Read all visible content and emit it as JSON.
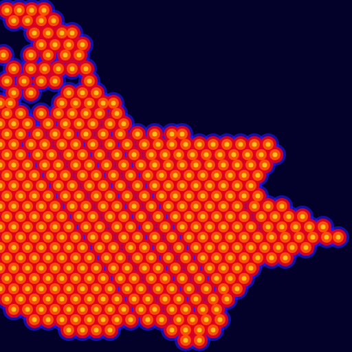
{
  "chart_data": {
    "type": "scatter",
    "tick_labels": false,
    "xlim": [
      0,
      512
    ],
    "ylim": [
      0,
      512
    ],
    "x": [
      10,
      28,
      46,
      64,
      20,
      40,
      60,
      78,
      50,
      70,
      90,
      105,
      60,
      80,
      100,
      120,
      5,
      45,
      70,
      95,
      115,
      20,
      45,
      65,
      85,
      105,
      125,
      10,
      35,
      60,
      80,
      130,
      20,
      45,
      100,
      120,
      140,
      0,
      15,
      90,
      110,
      130,
      150,
      165,
      10,
      30,
      60,
      85,
      105,
      125,
      145,
      170,
      0,
      20,
      40,
      70,
      95,
      115,
      135,
      160,
      180,
      10,
      30,
      55,
      80,
      100,
      125,
      150,
      175,
      200,
      225,
      250,
      265,
      0,
      20,
      45,
      65,
      90,
      110,
      135,
      160,
      185,
      210,
      230,
      250,
      270,
      290,
      310,
      330,
      350,
      370,
      390,
      10,
      30,
      55,
      75,
      100,
      120,
      145,
      170,
      195,
      220,
      240,
      260,
      280,
      300,
      320,
      340,
      360,
      380,
      400,
      0,
      20,
      40,
      65,
      85,
      110,
      130,
      155,
      180,
      205,
      225,
      245,
      265,
      285,
      305,
      325,
      345,
      365,
      385,
      10,
      30,
      50,
      75,
      95,
      120,
      140,
      165,
      190,
      215,
      235,
      255,
      275,
      295,
      315,
      335,
      355,
      375,
      0,
      20,
      40,
      60,
      85,
      105,
      130,
      150,
      175,
      200,
      225,
      245,
      265,
      285,
      305,
      325,
      345,
      365,
      10,
      30,
      50,
      70,
      95,
      115,
      140,
      160,
      185,
      210,
      235,
      255,
      275,
      295,
      315,
      335,
      355,
      375,
      0,
      20,
      40,
      60,
      80,
      105,
      125,
      150,
      170,
      195,
      220,
      245,
      265,
      285,
      305,
      325,
      345,
      370,
      390,
      410,
      10,
      30,
      50,
      70,
      90,
      115,
      135,
      160,
      180,
      205,
      230,
      255,
      275,
      295,
      315,
      335,
      355,
      380,
      400,
      420,
      440,
      0,
      20,
      40,
      60,
      80,
      100,
      125,
      145,
      170,
      190,
      215,
      240,
      265,
      285,
      305,
      325,
      345,
      365,
      390,
      410,
      430,
      450,
      470,
      10,
      30,
      50,
      70,
      90,
      110,
      135,
      155,
      180,
      200,
      225,
      250,
      275,
      295,
      315,
      335,
      355,
      375,
      395,
      415,
      435,
      455,
      475,
      492,
      0,
      20,
      40,
      60,
      80,
      100,
      120,
      145,
      165,
      190,
      210,
      235,
      260,
      285,
      305,
      325,
      345,
      365,
      385,
      405,
      425,
      445,
      10,
      30,
      50,
      70,
      90,
      110,
      130,
      155,
      175,
      200,
      220,
      245,
      270,
      295,
      315,
      335,
      355,
      375,
      395,
      415,
      0,
      20,
      40,
      60,
      80,
      100,
      120,
      140,
      165,
      185,
      210,
      230,
      255,
      280,
      305,
      325,
      345,
      365,
      10,
      30,
      50,
      70,
      90,
      110,
      130,
      150,
      175,
      195,
      220,
      240,
      265,
      290,
      315,
      335,
      355,
      0,
      20,
      40,
      60,
      80,
      100,
      120,
      140,
      160,
      185,
      205,
      230,
      250,
      275,
      300,
      325,
      345,
      10,
      30,
      50,
      70,
      90,
      110,
      130,
      150,
      170,
      195,
      215,
      240,
      260,
      285,
      310,
      330,
      20,
      40,
      60,
      80,
      100,
      120,
      140,
      160,
      180,
      205,
      225,
      250,
      270,
      295,
      315,
      50,
      70,
      90,
      110,
      130,
      150,
      170,
      190,
      215,
      235,
      260,
      280,
      300,
      320,
      100,
      120,
      140,
      160,
      250,
      270,
      290,
      310,
      270,
      290
    ],
    "values": [
      15,
      15,
      15,
      15,
      30,
      30,
      30,
      30,
      48,
      48,
      48,
      48,
      65,
      65,
      65,
      65,
      80,
      80,
      80,
      80,
      80,
      100,
      100,
      100,
      100,
      100,
      100,
      118,
      118,
      118,
      118,
      118,
      135,
      135,
      135,
      135,
      135,
      150,
      150,
      150,
      150,
      150,
      150,
      150,
      165,
      165,
      165,
      165,
      165,
      165,
      165,
      165,
      180,
      180,
      180,
      180,
      180,
      180,
      180,
      180,
      180,
      195,
      195,
      195,
      195,
      195,
      195,
      195,
      195,
      195,
      195,
      195,
      195,
      210,
      210,
      210,
      210,
      210,
      210,
      210,
      210,
      210,
      210,
      210,
      210,
      210,
      210,
      210,
      210,
      210,
      210,
      210,
      225,
      225,
      225,
      225,
      225,
      225,
      225,
      225,
      225,
      225,
      225,
      225,
      225,
      225,
      225,
      225,
      225,
      225,
      225,
      240,
      240,
      240,
      240,
      240,
      240,
      240,
      240,
      240,
      240,
      240,
      240,
      240,
      240,
      240,
      240,
      240,
      240,
      240,
      255,
      255,
      255,
      255,
      255,
      255,
      255,
      255,
      255,
      255,
      255,
      255,
      255,
      255,
      255,
      255,
      255,
      255,
      270,
      270,
      270,
      270,
      270,
      270,
      270,
      270,
      270,
      270,
      270,
      270,
      270,
      270,
      270,
      270,
      270,
      270,
      285,
      285,
      285,
      285,
      285,
      285,
      285,
      285,
      285,
      285,
      285,
      285,
      285,
      285,
      285,
      285,
      285,
      285,
      300,
      300,
      300,
      300,
      300,
      300,
      300,
      300,
      300,
      300,
      300,
      300,
      300,
      300,
      300,
      300,
      300,
      300,
      300,
      300,
      315,
      315,
      315,
      315,
      315,
      315,
      315,
      315,
      315,
      315,
      315,
      315,
      315,
      315,
      315,
      315,
      315,
      315,
      315,
      315,
      315,
      330,
      330,
      330,
      330,
      330,
      330,
      330,
      330,
      330,
      330,
      330,
      330,
      330,
      330,
      330,
      330,
      330,
      330,
      330,
      330,
      330,
      330,
      330,
      345,
      345,
      345,
      345,
      345,
      345,
      345,
      345,
      345,
      345,
      345,
      345,
      345,
      345,
      345,
      345,
      345,
      345,
      345,
      345,
      345,
      345,
      345,
      345,
      360,
      360,
      360,
      360,
      360,
      360,
      360,
      360,
      360,
      360,
      360,
      360,
      360,
      360,
      360,
      360,
      360,
      360,
      360,
      360,
      360,
      360,
      375,
      375,
      375,
      375,
      375,
      375,
      375,
      375,
      375,
      375,
      375,
      375,
      375,
      375,
      375,
      375,
      375,
      375,
      375,
      375,
      390,
      390,
      390,
      390,
      390,
      390,
      390,
      390,
      390,
      390,
      390,
      390,
      390,
      390,
      390,
      390,
      390,
      390,
      405,
      405,
      405,
      405,
      405,
      405,
      405,
      405,
      405,
      405,
      405,
      405,
      405,
      405,
      405,
      405,
      405,
      420,
      420,
      420,
      420,
      420,
      420,
      420,
      420,
      420,
      420,
      420,
      420,
      420,
      420,
      420,
      420,
      420,
      435,
      435,
      435,
      435,
      435,
      435,
      435,
      435,
      435,
      435,
      435,
      435,
      435,
      435,
      435,
      435,
      450,
      450,
      450,
      450,
      450,
      450,
      450,
      450,
      450,
      450,
      450,
      450,
      450,
      450,
      450,
      465,
      465,
      465,
      465,
      465,
      465,
      465,
      465,
      465,
      465,
      465,
      465,
      465,
      465,
      480,
      480,
      480,
      480,
      480,
      480,
      480,
      480,
      495,
      495
    ]
  }
}
